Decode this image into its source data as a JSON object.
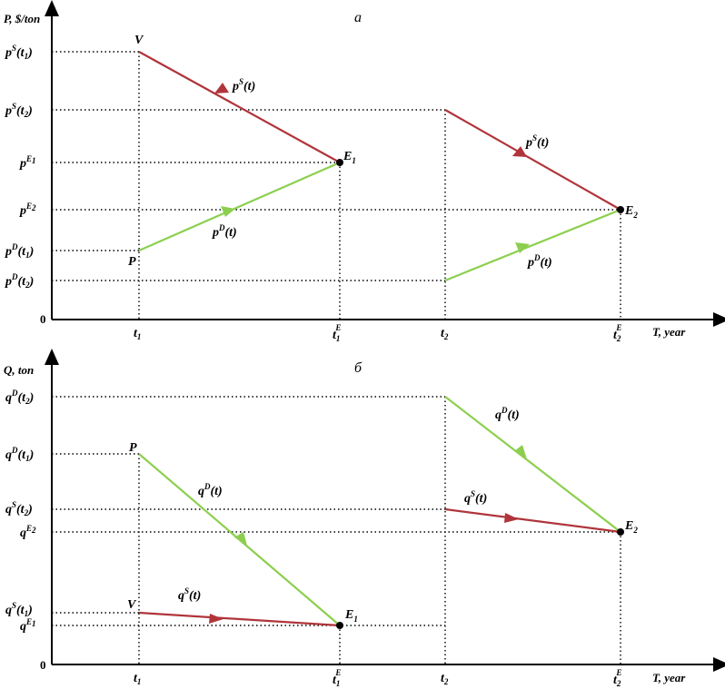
{
  "panel_a": {
    "panel_label": "a",
    "y_axis_label": "P, $/ton",
    "x_axis_label": "T, year",
    "origin": "0",
    "y_labels": [
      {
        "base": "p",
        "sup": "S",
        "arg": "(t",
        "sub": "1",
        "close": ")"
      },
      {
        "base": "p",
        "sup": "S",
        "arg": "(t",
        "sub": "2",
        "close": ")"
      },
      {
        "base": "p",
        "sup": "E",
        "supsub": "1"
      },
      {
        "base": "p",
        "sup": "E",
        "supsub": "2"
      },
      {
        "base": "p",
        "sup": "D",
        "arg": "(t",
        "sub": "1",
        "close": ")"
      },
      {
        "base": "p",
        "sup": "D",
        "arg": "(t",
        "sub": "2",
        "close": ")"
      }
    ],
    "points": {
      "V": "V",
      "P": "P",
      "E1": "E",
      "E1_sub": "1",
      "E2": "E",
      "E2_sub": "2"
    },
    "curve_labels": {
      "supply": "p",
      "supply_sup": "S",
      "supply_arg": "(t)",
      "demand": "p",
      "demand_sup": "D",
      "demand_arg": "(t)"
    }
  },
  "panel_b": {
    "panel_label": "б",
    "y_axis_label": "Q, ton",
    "x_axis_label": "T, year",
    "origin": "0",
    "y_labels": [
      {
        "base": "q",
        "sup": "D",
        "arg": "(t",
        "sub": "2",
        "close": ")"
      },
      {
        "base": "q",
        "sup": "D",
        "arg": "(t",
        "sub": "1",
        "close": ")"
      },
      {
        "base": "q",
        "sup": "S",
        "arg": "(t",
        "sub": "2",
        "close": ")"
      },
      {
        "base": "q",
        "sup": "E",
        "supsub": "2"
      },
      {
        "base": "q",
        "sup": "S",
        "arg": "(t",
        "sub": "1",
        "close": ")"
      },
      {
        "base": "q",
        "sup": "E",
        "supsub": "1"
      }
    ],
    "points": {
      "V": "V",
      "P": "P",
      "E1": "E",
      "E1_sub": "1",
      "E2": "E",
      "E2_sub": "2"
    },
    "curve_labels": {
      "supply": "q",
      "supply_sup": "S",
      "supply_arg": "(t)",
      "demand": "q",
      "demand_sup": "D",
      "demand_arg": "(t)"
    }
  },
  "x_ticks": [
    {
      "base": "t",
      "sub": "1"
    },
    {
      "base": "t",
      "sub": "1",
      "sup": "E"
    },
    {
      "base": "t",
      "sub": "2"
    },
    {
      "base": "t",
      "sub": "2",
      "sup": "E"
    }
  ],
  "colors": {
    "supply": "#b0353b",
    "demand": "#8ccf4e",
    "axis": "#000000"
  }
}
